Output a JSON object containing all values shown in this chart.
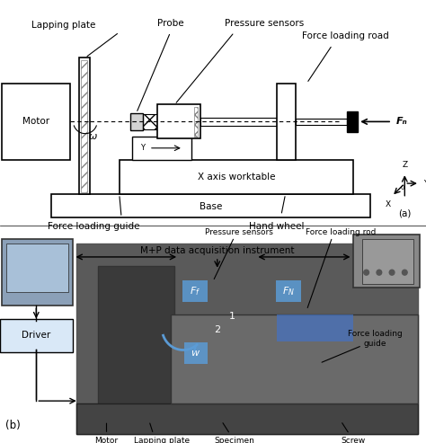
{
  "fig_width": 4.74,
  "fig_height": 4.93,
  "dpi": 100,
  "bg_color": "#ffffff",
  "top_panel_labels": {
    "lapping_plate": "Lapping plate",
    "probe": "Probe",
    "pressure_sensors": "Pressure sensors",
    "force_loading_road": "Force loading road",
    "motor": "Motor",
    "x_axis_worktable": "X axis worktable",
    "base": "Base",
    "force_loading_guide": "Force loading guide",
    "hand_wheel": "Hand wheel",
    "fn": "Fₙ",
    "omega": "ω",
    "panel_label": "(a)"
  },
  "bottom_panel_labels": {
    "mp_instrument": "M+P data acquisition instrument",
    "pressure_sensors": "Pressure sensors",
    "force_loading_rod": "Force loading rod",
    "fn": "Fₙ",
    "ff": "Fₑ",
    "w": "w",
    "force_loading_guide": "Force loading\nguide",
    "driver": "Driver",
    "motor": "Motor",
    "lapping_plate": "Lapping plate",
    "specimen": "Specimen",
    "screw": "Screw",
    "panel_label": "(b)"
  },
  "schematic_bg": "#f5f5f5",
  "photo_bg": "#808080",
  "blue_label_color": "#5b9bd5",
  "annotation_line_color": "#000000",
  "box_border_color": "#000000",
  "driver_box_color": "#d9e8f7",
  "label_font_size": 7.5,
  "small_font_size": 6.5
}
